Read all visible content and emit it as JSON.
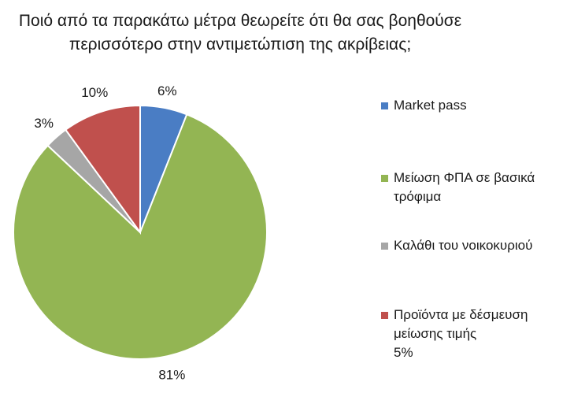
{
  "chart_data": {
    "type": "pie",
    "title": [
      "Ποιό από τα παρακάτω μέτρα θεωρείτε ότι θα σας βοηθούσε",
      "περισσότερο στην αντιμετώπιση της ακρίβειας;"
    ],
    "start_angle_deg": 0,
    "direction": "clockwise",
    "legend_position": "right",
    "slices": [
      {
        "name": "Market pass",
        "value": 6,
        "label": "6%",
        "color": "#4a7dc4"
      },
      {
        "name": "Μείωση ΦΠΑ σε βασικά τρόφιμα",
        "name_lines": [
          "Μείωση ΦΠΑ σε βασικά",
          "τρόφιμα"
        ],
        "value": 81,
        "label": "81%",
        "color": "#93b553"
      },
      {
        "name": "Καλάθι του νοικοκυριού",
        "value": 3,
        "label": "3%",
        "color": "#a6a6a6"
      },
      {
        "name": "Προϊόντα με δέσμευση μείωσης τιμής",
        "name_lines": [
          "Προϊόντα με δέσμευση",
          "μείωσης τιμής"
        ],
        "value": 10,
        "label": "10%",
        "color": "#c0504d"
      }
    ],
    "legend_extra_text": "5%"
  }
}
